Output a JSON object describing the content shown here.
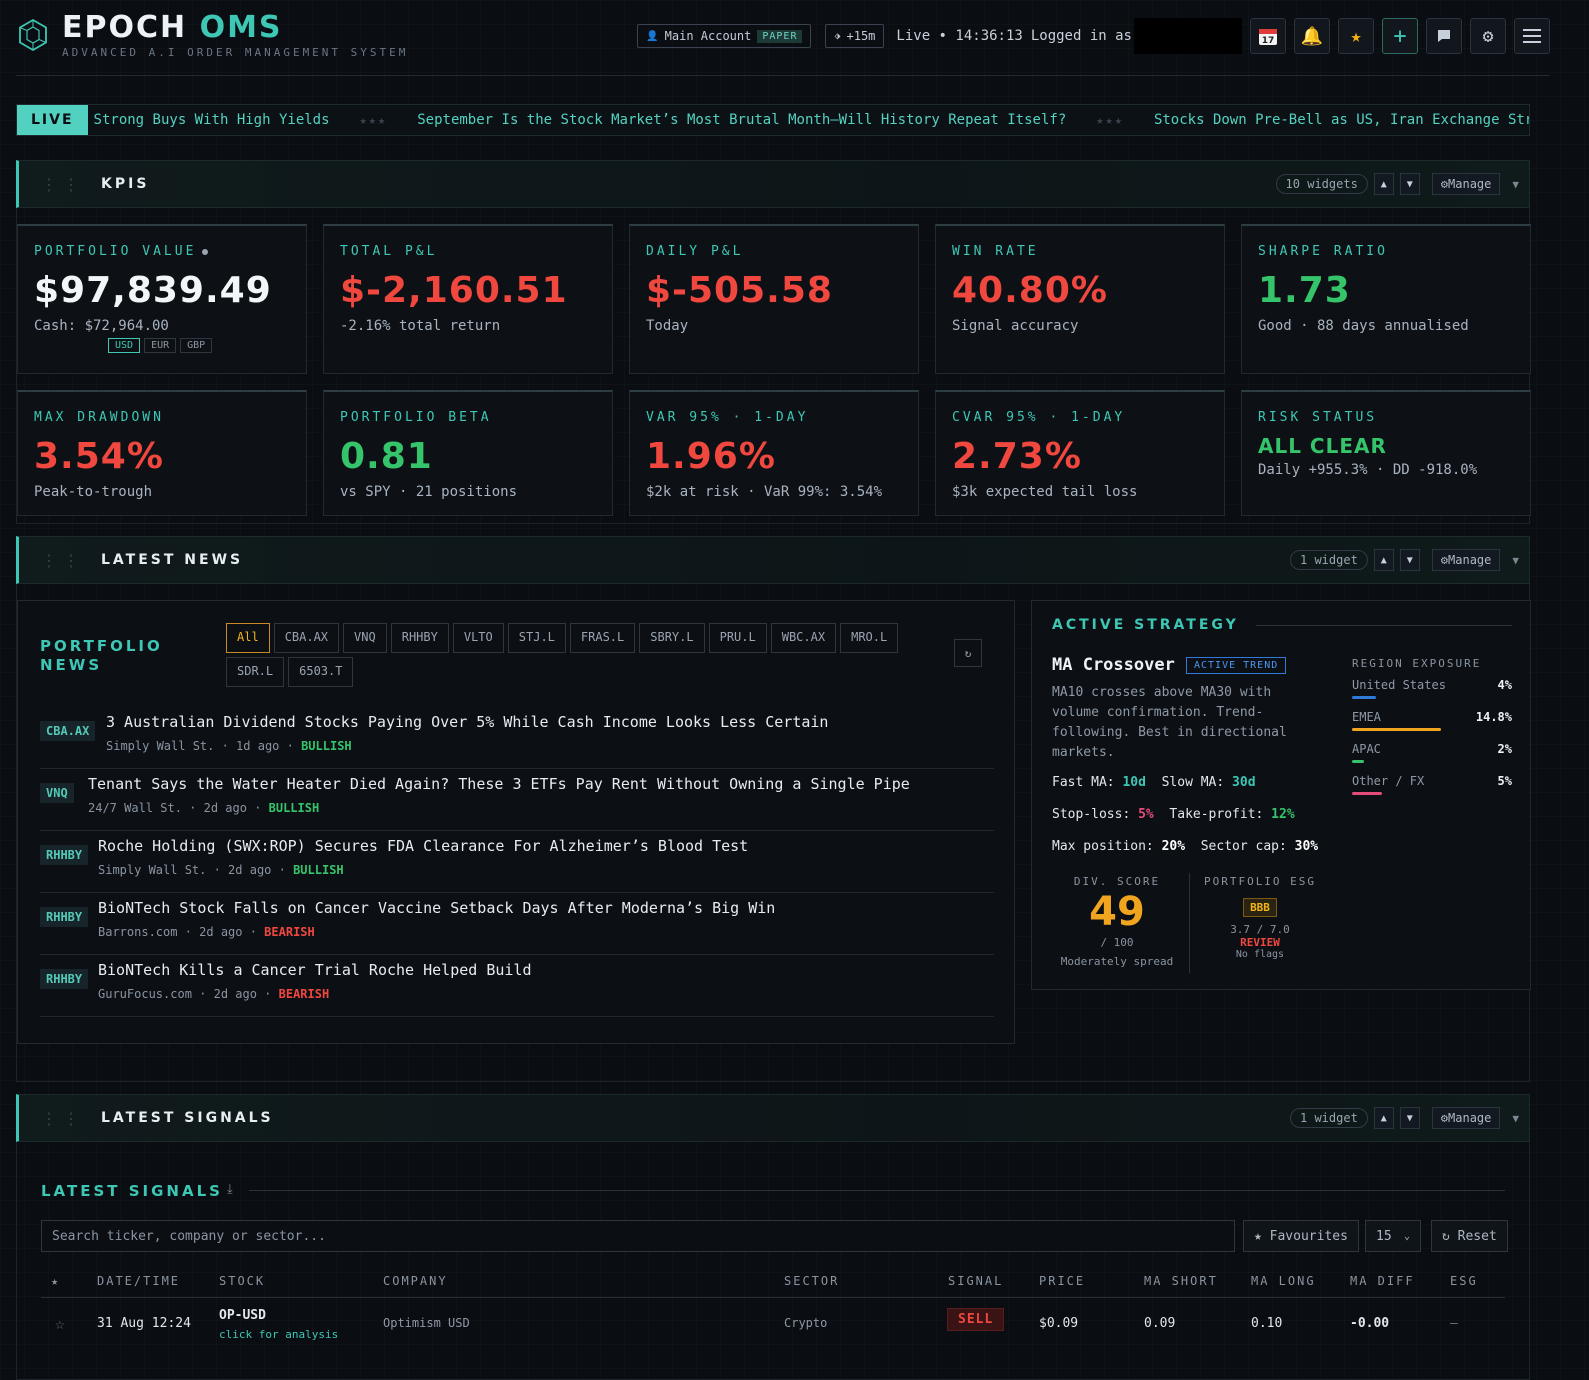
{
  "header": {
    "brand_main": "EPOCH",
    "brand_accent": "OMS",
    "tagline": "ADVANCED A.I ORDER MANAGEMENT SYSTEM",
    "account_label": "Main Account",
    "account_mode": "PAPER",
    "delay": "+15m",
    "live_status": "Live • 14:36:13",
    "logged_in_label": "Logged in as",
    "icons": [
      "calendar-icon",
      "bell-icon",
      "star-icon",
      "plus-icon",
      "chat-icon",
      "gear-icon",
      "menu-icon"
    ]
  },
  "ticker": {
    "tag": "LIVE",
    "items": [
      "Strong Buys With High Yields",
      "September Is the Stock Market’s Most Brutal Month—Will History Repeat Itself?",
      "Stocks Down Pre-Bell as US, Iran Exchange Strikes"
    ],
    "separator": "★★★"
  },
  "sections": {
    "kpis": {
      "title": "KPIS",
      "count": "10 widgets",
      "manage": "⚙Manage"
    },
    "news": {
      "title": "LATEST NEWS",
      "count": "1 widget",
      "manage": "⚙Manage"
    },
    "signals": {
      "title": "LATEST SIGNALS",
      "count": "1 widget",
      "manage": "⚙Manage"
    }
  },
  "kpis": [
    {
      "label": "PORTFOLIO VALUE",
      "value": "$97,839.49",
      "sub": "Cash: $72,964.00",
      "tone": "white"
    },
    {
      "label": "TOTAL P&L",
      "value": "$-2,160.51",
      "sub": "-2.16% total return",
      "tone": "red"
    },
    {
      "label": "DAILY P&L",
      "value": "$-505.58",
      "sub": "Today",
      "tone": "red"
    },
    {
      "label": "WIN RATE",
      "value": "40.80%",
      "sub": "Signal accuracy",
      "tone": "red"
    },
    {
      "label": "SHARPE RATIO",
      "value": "1.73",
      "sub": "Good · 88 days annualised",
      "tone": "green"
    },
    {
      "label": "MAX DRAWDOWN",
      "value": "3.54%",
      "sub": "Peak-to-trough",
      "tone": "red"
    },
    {
      "label": "PORTFOLIO BETA",
      "value": "0.81",
      "sub": "vs SPY · 21 positions",
      "tone": "green"
    },
    {
      "label": "VAR 95% · 1-DAY",
      "value": "1.96%",
      "sub": "$2k at risk · VaR 99%: 3.54%",
      "tone": "red"
    },
    {
      "label": "CVAR 95% · 1-DAY",
      "value": "2.73%",
      "sub": "$3k expected tail loss",
      "tone": "red"
    },
    {
      "label": "RISK STATUS",
      "value": "ALL CLEAR",
      "sub": "Daily +955.3% · DD -918.0%",
      "tone": "green"
    }
  ],
  "currencies": [
    "USD",
    "EUR",
    "GBP"
  ],
  "news": {
    "title": "PORTFOLIO NEWS",
    "filters": [
      "All",
      "CBA.AX",
      "VNQ",
      "RHHBY",
      "VLTO",
      "STJ.L",
      "FRAS.L",
      "SBRY.L",
      "PRU.L",
      "WBC.AX",
      "MRO.L",
      "SDR.L",
      "6503.T"
    ],
    "refresh": "↻",
    "items": [
      {
        "ticker": "CBA.AX",
        "headline": "3 Australian Dividend Stocks Paying Over 5% While Cash Income Looks Less Certain",
        "source": "Simply Wall St. · 1d ago · ",
        "sentiment": "BULLISH"
      },
      {
        "ticker": "VNQ",
        "headline": "Tenant Says the Water Heater Died Again? These 3 ETFs Pay Rent Without Owning a Single Pipe",
        "source": "24/7 Wall St. · 2d ago · ",
        "sentiment": "BULLISH"
      },
      {
        "ticker": "RHHBY",
        "headline": "Roche Holding (SWX:ROP) Secures FDA Clearance For Alzheimer’s Blood Test",
        "source": "Simply Wall St. · 2d ago · ",
        "sentiment": "BULLISH"
      },
      {
        "ticker": "RHHBY",
        "headline": "BioNTech Stock Falls on Cancer Vaccine Setback Days After Moderna’s Big Win",
        "source": "Barrons.com · 2d ago · ",
        "sentiment": "BEARISH"
      },
      {
        "ticker": "RHHBY",
        "headline": "BioNTech Kills a Cancer Trial Roche Helped Build",
        "source": "GuruFocus.com · 2d ago · ",
        "sentiment": "BEARISH"
      }
    ]
  },
  "strategy": {
    "title": "ACTIVE STRATEGY",
    "name": "MA Crossover",
    "badge": "ACTIVE TREND",
    "description": "MA10 crosses above MA30 with volume confirmation. Trend-following. Best in directional markets.",
    "fast_ma_label": "Fast MA:",
    "fast_ma": "10d",
    "slow_ma_label": "Slow MA:",
    "slow_ma": "30d",
    "stop_loss_label": "Stop-loss:",
    "stop_loss": "5%",
    "take_profit_label": "Take-profit:",
    "take_profit": "12%",
    "max_pos_label": "Max position:",
    "max_pos": "20%",
    "sector_cap_label": "Sector cap:",
    "sector_cap": "30%",
    "region_title": "REGION EXPOSURE",
    "regions": [
      {
        "name": "United States",
        "value": "4%",
        "fraction": 0.04,
        "color": "#2f79d8"
      },
      {
        "name": "EMEA",
        "value": "14.8%",
        "fraction": 0.148,
        "color": "#f1a51f"
      },
      {
        "name": "APAC",
        "value": "2%",
        "fraction": 0.02,
        "color": "#35c46a"
      },
      {
        "name": "Other / FX",
        "value": "5%",
        "fraction": 0.05,
        "color": "#e34b7a"
      }
    ],
    "div_title": "DIV. SCORE",
    "div_score": "49",
    "div_max": "/ 100",
    "div_label": "Moderately spread",
    "esg_title": "PORTFOLIO ESG",
    "esg_rating": "BBB",
    "esg_score": "3.7 / 7.0",
    "esg_status": "REVIEW",
    "esg_flags": "No flags"
  },
  "signals": {
    "title": "LATEST SIGNALS",
    "search_placeholder": "Search ticker, company or sector...",
    "favourites": "★ Favourites",
    "page_size": "15",
    "reset": "↻ Reset",
    "columns": [
      "★",
      "DATE/TIME",
      "STOCK",
      "COMPANY",
      "SECTOR",
      "SIGNAL",
      "PRICE",
      "MA SHORT",
      "MA LONG",
      "MA DIFF",
      "ESG"
    ],
    "rows": [
      {
        "star": "☆",
        "datetime": "31 Aug 12:24",
        "stock": "OP-USD",
        "hint": "click for analysis",
        "company": "Optimism USD",
        "sector": "Crypto",
        "signal": "SELL",
        "price": "$0.09",
        "ma_short": "0.09",
        "ma_long": "0.10",
        "ma_diff": "-0.00",
        "esg": "—"
      }
    ]
  }
}
